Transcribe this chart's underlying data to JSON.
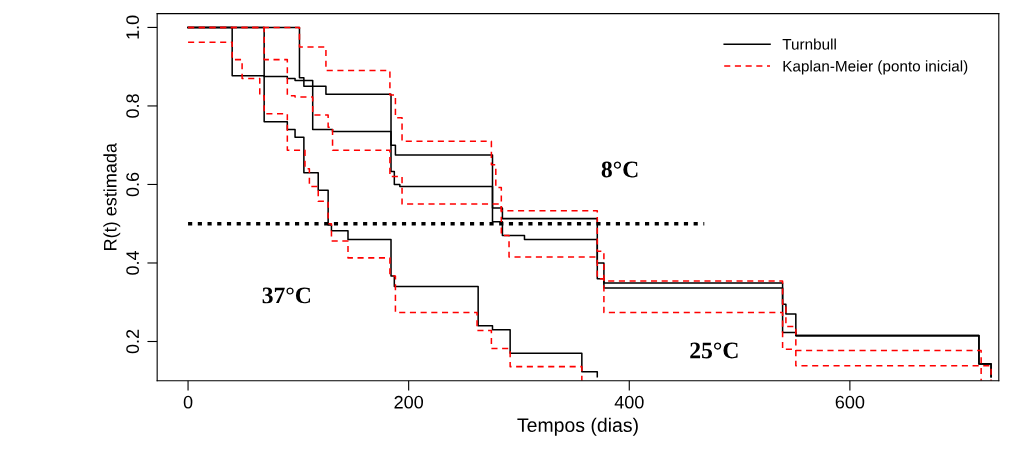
{
  "chart_data": {
    "type": "step",
    "xlabel": "Tempos (dias)",
    "ylabel": "R(t) estimada",
    "xlim": [
      -28,
      735
    ],
    "ylim": [
      0.1,
      1.035
    ],
    "xticks": [
      0,
      200,
      400,
      600
    ],
    "yticks": [
      0.2,
      0.4,
      0.6,
      0.8,
      {
        "value": 1,
        "label": "1.0"
      }
    ],
    "grid": false,
    "legend": "top right",
    "marker": "none",
    "series": [
      {
        "name": "Turnbull",
        "color": "#000000",
        "line_style": "solid",
        "x": [
          0,
          40,
          69,
          90,
          97,
          105,
          118,
          127,
          130,
          145,
          184,
          187,
          263,
          276,
          292,
          357,
          371
        ],
        "values": [
          1.0,
          0.877,
          0.76,
          0.74,
          0.72,
          0.63,
          0.585,
          0.497,
          0.482,
          0.46,
          0.367,
          0.34,
          0.24,
          0.23,
          0.17,
          0.123,
          0.11
        ]
      },
      {
        "color": "#000000",
        "line_style": "solid",
        "x": [
          0,
          101,
          105,
          125,
          184,
          188,
          276,
          285,
          371,
          377,
          539,
          542,
          551,
          717,
          728
        ],
        "values": [
          1.0,
          0.872,
          0.85,
          0.83,
          0.7,
          0.675,
          0.54,
          0.513,
          0.4,
          0.349,
          0.295,
          0.27,
          0.215,
          0.143,
          0.11
        ]
      },
      {
        "color": "#000000",
        "line_style": "solid",
        "x": [
          0,
          69,
          90,
          97,
          113,
          131,
          184,
          187,
          192,
          276,
          285,
          305,
          371,
          377,
          539,
          551,
          717,
          728
        ],
        "values": [
          1.0,
          0.875,
          0.87,
          0.865,
          0.74,
          0.735,
          0.633,
          0.6,
          0.595,
          0.505,
          0.47,
          0.46,
          0.36,
          0.336,
          0.223,
          0.215,
          0.143,
          0.11
        ]
      },
      {
        "name": "Kaplan-Meier (ponto inicial)",
        "color": "#ff0000",
        "line_style": "dashed",
        "x": [
          0,
          40,
          49,
          65,
          69,
          90,
          106,
          110,
          118,
          127,
          130,
          145,
          183,
          188,
          262,
          275,
          292,
          357
        ],
        "values": [
          0.962,
          0.918,
          0.87,
          0.826,
          0.78,
          0.687,
          0.64,
          0.595,
          0.557,
          0.5,
          0.456,
          0.413,
          0.367,
          0.274,
          0.228,
          0.182,
          0.136,
          0.1
        ]
      },
      {
        "color": "#ff0000",
        "line_style": "dashed",
        "x": [
          0,
          101,
          125,
          183,
          188,
          194,
          275,
          279,
          284,
          371,
          377,
          539,
          542,
          551,
          719,
          728
        ],
        "values": [
          1.0,
          0.95,
          0.89,
          0.828,
          0.77,
          0.71,
          0.65,
          0.592,
          0.533,
          0.43,
          0.354,
          0.295,
          0.238,
          0.177,
          0.138,
          0.1
        ]
      },
      {
        "color": "#ff0000",
        "line_style": "dashed",
        "x": [
          0,
          69,
          90,
          97,
          113,
          127,
          131,
          183,
          194,
          284,
          291,
          371,
          377,
          539,
          551,
          719
        ],
        "values": [
          1.0,
          0.918,
          0.826,
          0.823,
          0.777,
          0.746,
          0.687,
          0.62,
          0.55,
          0.47,
          0.415,
          0.36,
          0.274,
          0.18,
          0.138,
          0.1
        ]
      },
      {
        "type": "line",
        "color": "#000000",
        "line_style": "dotted",
        "x": [
          0,
          468
        ],
        "values": [
          0.5,
          0.5
        ]
      }
    ],
    "annotations": [
      "8°C",
      "37°C",
      "25°C"
    ]
  }
}
